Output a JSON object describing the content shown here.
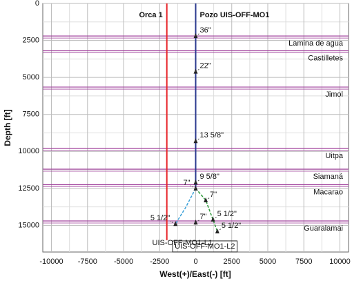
{
  "chart_data": {
    "type": "line",
    "xlabel": "West(+)/East(-) [ft]",
    "ylabel": "Depth [ft]",
    "xlim": [
      -10600,
      10600
    ],
    "ylim": [
      0,
      16800
    ],
    "y_inverted": true,
    "grid": true,
    "xticks": [
      -10000,
      -7500,
      -5000,
      -2500,
      0,
      2500,
      5000,
      7500,
      10000
    ],
    "yticks": [
      0,
      2500,
      5000,
      7500,
      10000,
      12500,
      15000
    ],
    "series": [
      {
        "name": "Orca 1",
        "color": "#e8262b",
        "x": [
          -2000,
          -2000
        ],
        "y": [
          0,
          16000
        ]
      },
      {
        "name": "Pozo  UIS-OFF-MO1",
        "color": "#2b3a8f",
        "x": [
          0,
          0
        ],
        "y": [
          0,
          12500
        ]
      },
      {
        "name": "UIS-OFF-MO1-L1",
        "color": "#3aa0d8",
        "x": [
          0,
          -700,
          -1400
        ],
        "y": [
          12500,
          13800,
          14900
        ]
      },
      {
        "name": "UIS-OFF-MO1-L2",
        "color": "#2e9a3a",
        "x": [
          0,
          700,
          1500
        ],
        "y": [
          12500,
          13300,
          15400
        ]
      }
    ],
    "formations": [
      {
        "name": "Lamina de agua",
        "depth": 2200
      },
      {
        "name": "Castilletes",
        "depth": 3200
      },
      {
        "name": "Jimol",
        "depth": 5650
      },
      {
        "name": "Uitpa",
        "depth": 9800
      },
      {
        "name": "Siamaná",
        "depth": 11200
      },
      {
        "name": "Macarao",
        "depth": 12250
      },
      {
        "name": "Guaralamai",
        "depth": 14700
      }
    ],
    "casings": [
      {
        "label": "36\"",
        "x": 0,
        "depth": 2200,
        "anchor": "right"
      },
      {
        "label": "22\"",
        "x": 0,
        "depth": 4600,
        "anchor": "right"
      },
      {
        "label": "13 5/8\"",
        "x": 0,
        "depth": 9300,
        "anchor": "right"
      },
      {
        "label": "9 5/8\"",
        "x": 0,
        "depth": 12100,
        "anchor": "right"
      },
      {
        "label": "7\"",
        "x": 0,
        "depth": 12500,
        "anchor": "left"
      },
      {
        "label": "7\"",
        "x": 700,
        "depth": 13300,
        "anchor": "right"
      },
      {
        "label": "5 1/2\"",
        "x": -1400,
        "depth": 14900,
        "anchor": "left"
      },
      {
        "label": "7\"",
        "x": 0,
        "depth": 14800,
        "anchor": "right"
      },
      {
        "label": "5 1/2\"",
        "x": 1200,
        "depth": 14600,
        "anchor": "right"
      },
      {
        "label": "5 1/2\"",
        "x": 1500,
        "depth": 15400,
        "anchor": "right"
      }
    ]
  }
}
